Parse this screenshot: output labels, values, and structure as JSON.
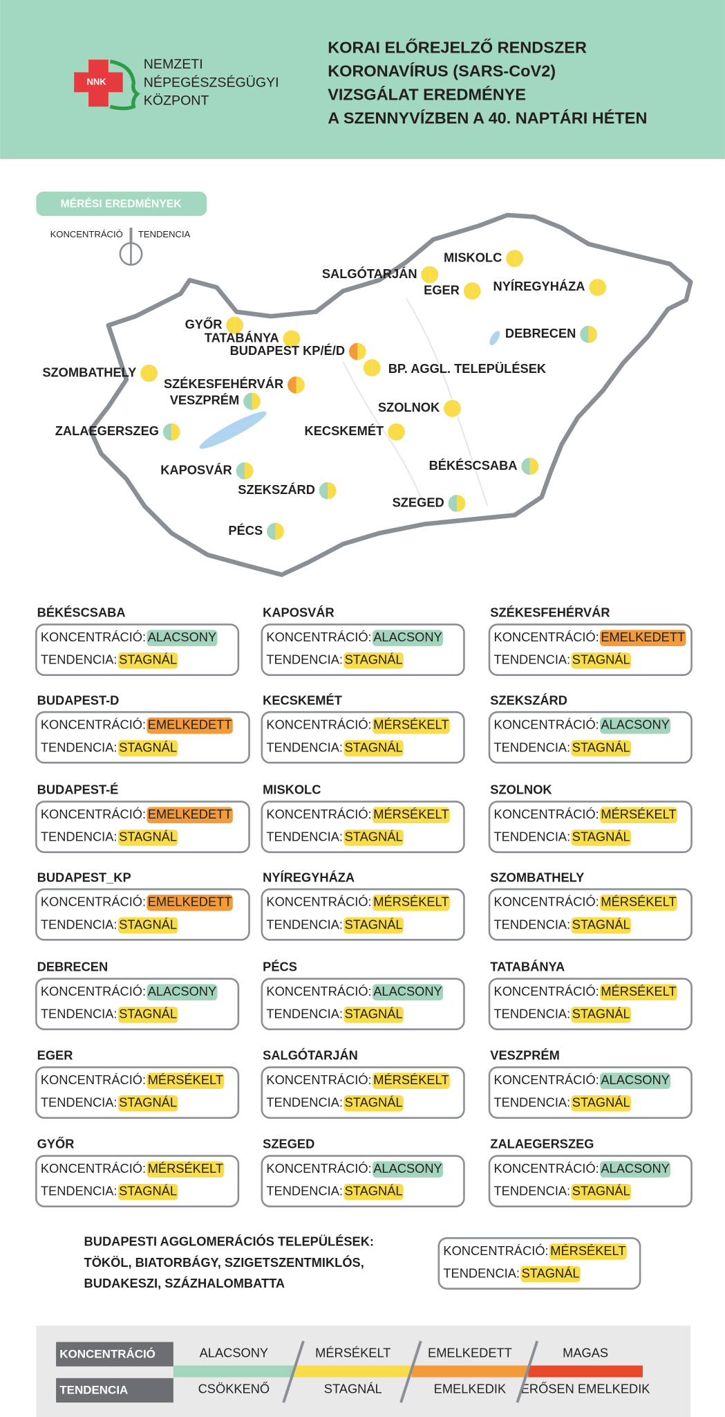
{
  "header": {
    "logo_text": "NNK",
    "org_lines": [
      "NEMZETI",
      "NÉPEGÉSZSÉGÜGYI",
      "KÖZPONT"
    ],
    "title_lines": [
      "KORAI ELŐREJELZŐ RENDSZER",
      "KORONAVÍRUS (SARS-CoV2)",
      "VIZSGÁLAT EREDMÉNYE",
      "A SZENNYVÍZBEN A 40. NAPTÁRI HÉTEN"
    ]
  },
  "map": {
    "badge": "MÉRÉSI EREDMÉNYEK",
    "key_left": "KONCENTRÁCIÓ",
    "key_right": "TENDENCIA",
    "markers": [
      {
        "label": "MISKOLC",
        "left": "#f9dc4a",
        "right": "#f9dc4a"
      },
      {
        "label": "SALGÓTARJÁN",
        "left": "#f9dc4a",
        "right": "#f9dc4a"
      },
      {
        "label": "EGER",
        "left": "#f9dc4a",
        "right": "#f9dc4a"
      },
      {
        "label": "NYÍREGYHÁZA",
        "left": "#f9dc4a",
        "right": "#f9dc4a"
      },
      {
        "label": "GYŐR",
        "left": "#f9dc4a",
        "right": "#f9dc4a"
      },
      {
        "label": "TATABÁNYA",
        "left": "#f9dc4a",
        "right": "#f9dc4a"
      },
      {
        "label": "BUDAPEST KP/É/D",
        "left": "#f39a3a",
        "right": "#f9dc4a"
      },
      {
        "label": "BP. AGGL. TELEPÜLÉSEK",
        "left": "#f9dc4a",
        "right": "#f9dc4a"
      },
      {
        "label": "DEBRECEN",
        "left": "#a3d4bd",
        "right": "#f9dc4a"
      },
      {
        "label": "SZOMBATHELY",
        "left": "#f9dc4a",
        "right": "#f9dc4a"
      },
      {
        "label": "SZÉKESFEHÉRVÁR",
        "left": "#f39a3a",
        "right": "#f9dc4a"
      },
      {
        "label": "VESZPRÉM",
        "left": "#a3d4bd",
        "right": "#f9dc4a"
      },
      {
        "label": "SZOLNOK",
        "left": "#f9dc4a",
        "right": "#f9dc4a"
      },
      {
        "label": "ZALAEGERSZEG",
        "left": "#a3d4bd",
        "right": "#f9dc4a"
      },
      {
        "label": "KECSKEMÉT",
        "left": "#f9dc4a",
        "right": "#f9dc4a"
      },
      {
        "label": "KAPOSVÁR",
        "left": "#a3d4bd",
        "right": "#f9dc4a"
      },
      {
        "label": "BÉKÉSCSABA",
        "left": "#a3d4bd",
        "right": "#f9dc4a"
      },
      {
        "label": "SZEKSZÁRD",
        "left": "#a3d4bd",
        "right": "#f9dc4a"
      },
      {
        "label": "SZEGED",
        "left": "#a3d4bd",
        "right": "#f9dc4a"
      },
      {
        "label": "PÉCS",
        "left": "#a3d4bd",
        "right": "#f9dc4a"
      }
    ]
  },
  "cards": [
    {
      "name": "BÉKÉSCSABA",
      "concentration_label": "KONCENTRÁCIÓ:",
      "concentration": "ALACSONY",
      "concentration_color": "#a3d4bd",
      "trend_label": "TENDENCIA:",
      "trend": "STAGNÁL",
      "trend_color": "#f9dc4a"
    },
    {
      "name": "KAPOSVÁR",
      "concentration_label": "KONCENTRÁCIÓ:",
      "concentration": "ALACSONY",
      "concentration_color": "#a3d4bd",
      "trend_label": "TENDENCIA:",
      "trend": "STAGNÁL",
      "trend_color": "#f9dc4a"
    },
    {
      "name": "SZÉKESFEHÉRVÁR",
      "concentration_label": "KONCENTRÁCIÓ:",
      "concentration": "EMELKEDETT",
      "concentration_color": "#f39a3a",
      "trend_label": "TENDENCIA:",
      "trend": "STAGNÁL",
      "trend_color": "#f9dc4a"
    },
    {
      "name": "BUDAPEST-D",
      "concentration_label": "KONCENTRÁCIÓ:",
      "concentration": "EMELKEDETT",
      "concentration_color": "#f39a3a",
      "trend_label": "TENDENCIA:",
      "trend": "STAGNÁL",
      "trend_color": "#f9dc4a"
    },
    {
      "name": "KECSKEMÉT",
      "concentration_label": "KONCENTRÁCIÓ:",
      "concentration": "MÉRSÉKELT",
      "concentration_color": "#f9dc4a",
      "trend_label": "TENDENCIA:",
      "trend": "STAGNÁL",
      "trend_color": "#f9dc4a"
    },
    {
      "name": "SZEKSZÁRD",
      "concentration_label": "KONCENTRÁCIÓ:",
      "concentration": "ALACSONY",
      "concentration_color": "#a3d4bd",
      "trend_label": "TENDENCIA:",
      "trend": "STAGNÁL",
      "trend_color": "#f9dc4a"
    },
    {
      "name": "BUDAPEST-É",
      "concentration_label": "KONCENTRÁCIÓ:",
      "concentration": "EMELKEDETT",
      "concentration_color": "#f39a3a",
      "trend_label": "TENDENCIA:",
      "trend": "STAGNÁL",
      "trend_color": "#f9dc4a"
    },
    {
      "name": "MISKOLC",
      "concentration_label": "KONCENTRÁCIÓ:",
      "concentration": "MÉRSÉKELT",
      "concentration_color": "#f9dc4a",
      "trend_label": "TENDENCIA:",
      "trend": "STAGNÁL",
      "trend_color": "#f9dc4a"
    },
    {
      "name": "SZOLNOK",
      "concentration_label": "KONCENTRÁCIÓ:",
      "concentration": "MÉRSÉKELT",
      "concentration_color": "#f9dc4a",
      "trend_label": "TENDENCIA:",
      "trend": "STAGNÁL",
      "trend_color": "#f9dc4a"
    },
    {
      "name": "BUDAPEST_KP",
      "concentration_label": "KONCENTRÁCIÓ:",
      "concentration": "EMELKEDETT",
      "concentration_color": "#f39a3a",
      "trend_label": "TENDENCIA:",
      "trend": "STAGNÁL",
      "trend_color": "#f9dc4a"
    },
    {
      "name": "NYÍREGYHÁZA",
      "concentration_label": "KONCENTRÁCIÓ:",
      "concentration": "MÉRSÉKELT",
      "concentration_color": "#f9dc4a",
      "trend_label": "TENDENCIA:",
      "trend": "STAGNÁL",
      "trend_color": "#f9dc4a"
    },
    {
      "name": "SZOMBATHELY",
      "concentration_label": "KONCENTRÁCIÓ:",
      "concentration": "MÉRSÉKELT",
      "concentration_color": "#f9dc4a",
      "trend_label": "TENDENCIA:",
      "trend": "STAGNÁL",
      "trend_color": "#f9dc4a"
    },
    {
      "name": "DEBRECEN",
      "concentration_label": "KONCENTRÁCIÓ:",
      "concentration": "ALACSONY",
      "concentration_color": "#a3d4bd",
      "trend_label": "TENDENCIA:",
      "trend": "STAGNÁL",
      "trend_color": "#f9dc4a"
    },
    {
      "name": "PÉCS",
      "concentration_label": "KONCENTRÁCIÓ:",
      "concentration": "ALACSONY",
      "concentration_color": "#a3d4bd",
      "trend_label": "TENDENCIA:",
      "trend": "STAGNÁL",
      "trend_color": "#f9dc4a"
    },
    {
      "name": "TATABÁNYA",
      "concentration_label": "KONCENTRÁCIÓ:",
      "concentration": "MÉRSÉKELT",
      "concentration_color": "#f9dc4a",
      "trend_label": "TENDENCIA:",
      "trend": "STAGNÁL",
      "trend_color": "#f9dc4a"
    },
    {
      "name": "EGER",
      "concentration_label": "KONCENTRÁCIÓ:",
      "concentration": "MÉRSÉKELT",
      "concentration_color": "#f9dc4a",
      "trend_label": "TENDENCIA:",
      "trend": "STAGNÁL",
      "trend_color": "#f9dc4a"
    },
    {
      "name": "SALGÓTARJÁN",
      "concentration_label": "KONCENTRÁCIÓ:",
      "concentration": "MÉRSÉKELT",
      "concentration_color": "#f9dc4a",
      "trend_label": "TENDENCIA:",
      "trend": "STAGNÁL",
      "trend_color": "#f9dc4a"
    },
    {
      "name": "VESZPRÉM",
      "concentration_label": "KONCENTRÁCIÓ:",
      "concentration": "ALACSONY",
      "concentration_color": "#a3d4bd",
      "trend_label": "TENDENCIA:",
      "trend": "STAGNÁL",
      "trend_color": "#f9dc4a"
    },
    {
      "name": "GYŐR",
      "concentration_label": "KONCENTRÁCIÓ:",
      "concentration": "MÉRSÉKELT",
      "concentration_color": "#f9dc4a",
      "trend_label": "TENDENCIA:",
      "trend": "STAGNÁL",
      "trend_color": "#f9dc4a"
    },
    {
      "name": "SZEGED",
      "concentration_label": "KONCENTRÁCIÓ:",
      "concentration": "ALACSONY",
      "concentration_color": "#a3d4bd",
      "trend_label": "TENDENCIA:",
      "trend": "STAGNÁL",
      "trend_color": "#f9dc4a"
    },
    {
      "name": "ZALAEGERSZEG",
      "concentration_label": "KONCENTRÁCIÓ:",
      "concentration": "ALACSONY",
      "concentration_color": "#a3d4bd",
      "trend_label": "TENDENCIA:",
      "trend": "STAGNÁL",
      "trend_color": "#f9dc4a"
    }
  ],
  "agglomeration": {
    "lines": [
      "BUDAPESTI AGGLOMERÁCIÓS TELEPÜLÉSEK:",
      "TÖKÖL, BIATORBÁGY, SZIGETSZENTMIKLÓS,",
      "BUDAKESZI, SZÁZHALOMBATTA"
    ],
    "card": {
      "concentration_label": "KONCENTRÁCIÓ:",
      "concentration": "MÉRSÉKELT",
      "concentration_color": "#f9dc4a",
      "trend_label": "TENDENCIA:",
      "trend": "STAGNÁL",
      "trend_color": "#f9dc4a"
    }
  },
  "scale": {
    "concentration_title": "KONCENTRÁCIÓ",
    "trend_title": "TENDENCIA",
    "levels": [
      {
        "concentration": "ALACSONY",
        "trend": "CSÖKKENŐ",
        "color": "#a3d4bd"
      },
      {
        "concentration": "MÉRSÉKELT",
        "trend": "STAGNÁL",
        "color": "#f9dc4a"
      },
      {
        "concentration": "EMELKEDETT",
        "trend": "EMELKEDIK",
        "color": "#f39a3a"
      },
      {
        "concentration": "MAGAS",
        "trend": "ERŐSEN EMELKEDIK",
        "color": "#e8492b"
      }
    ]
  }
}
